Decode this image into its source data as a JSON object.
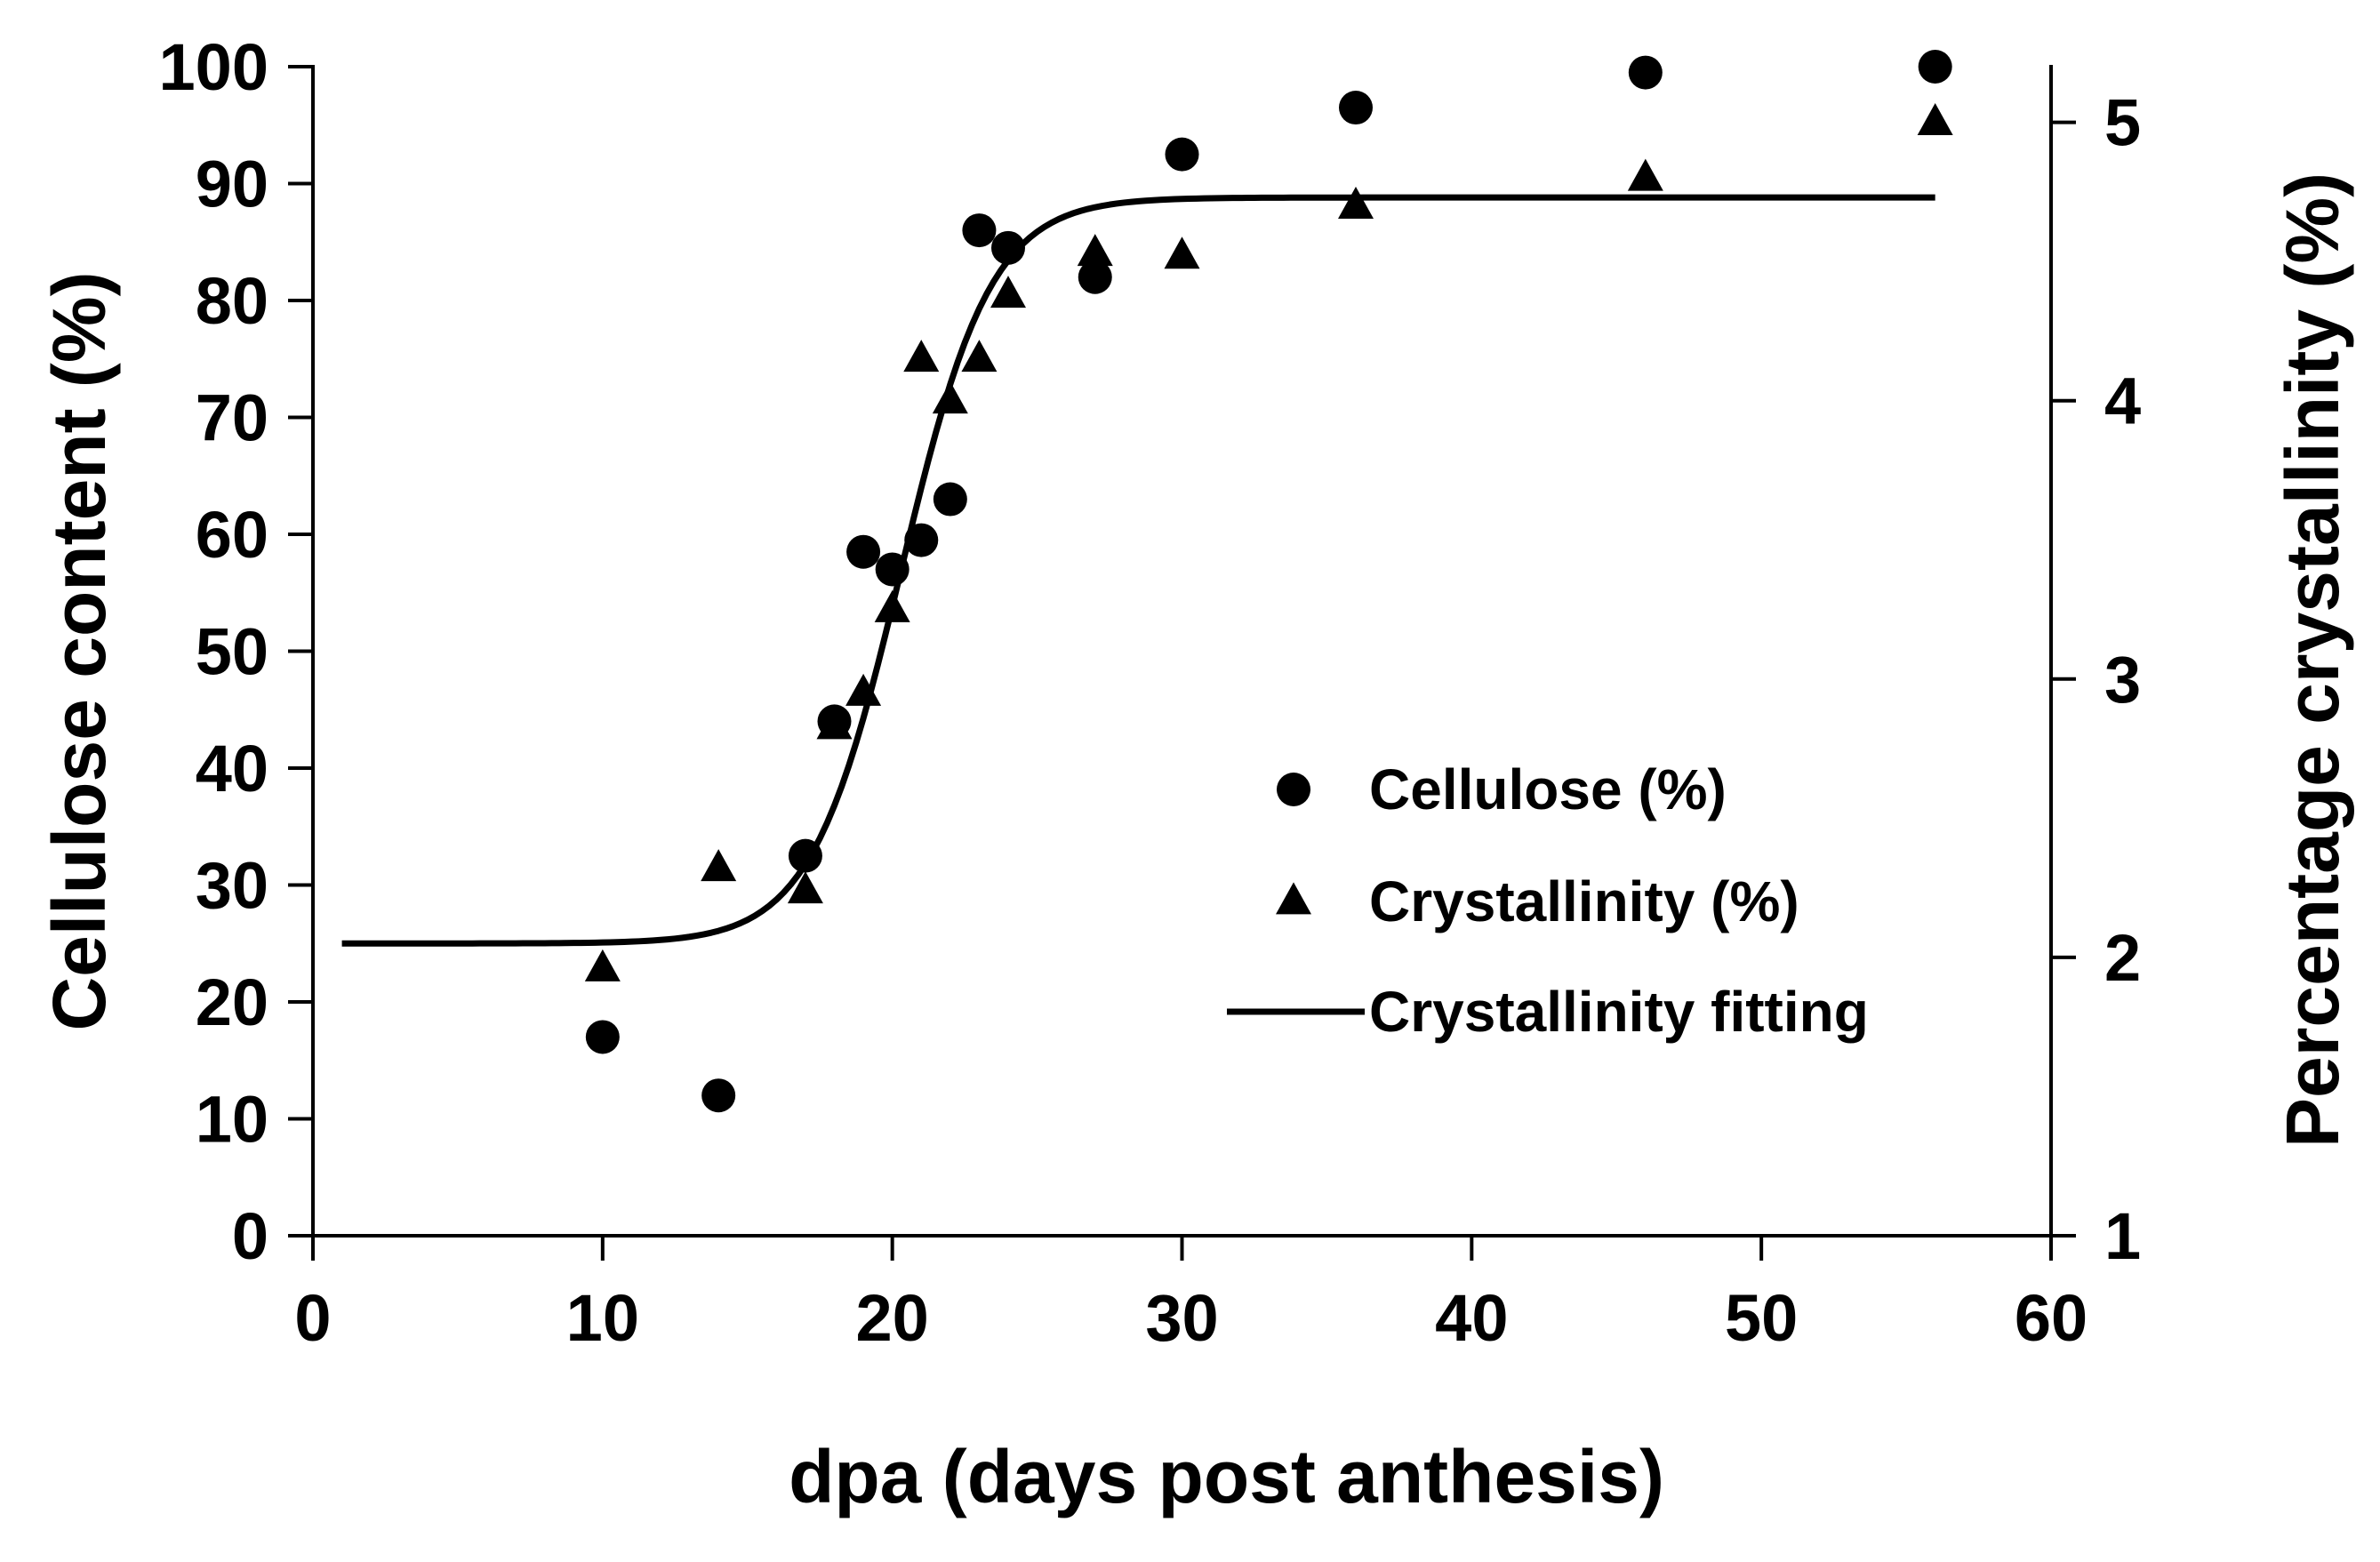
{
  "chart_data": {
    "type": "scatter",
    "title": "",
    "xlabel": "dpa (days post anthesis)",
    "ylabel": "Cellulose content (%)",
    "y2label": "Percentage crystallinity (%)",
    "xlim": [
      0,
      60
    ],
    "ylim": [
      0,
      100
    ],
    "y2lim": [
      1,
      5.2
    ],
    "x_ticks": [
      "0",
      "10",
      "20",
      "30",
      "40",
      "50",
      "60"
    ],
    "y_ticks": [
      "0",
      "10",
      "20",
      "30",
      "40",
      "50",
      "60",
      "70",
      "80",
      "90",
      "100"
    ],
    "y2_ticks": [
      "1",
      "2",
      "3",
      "4",
      "5"
    ],
    "grid": false,
    "legend_position": "center-right",
    "series": [
      {
        "name": "Cellulose (%)",
        "axis": "left",
        "marker": "circle",
        "x": [
          10,
          14,
          17,
          18,
          19,
          20,
          21,
          22,
          23,
          24,
          27,
          30,
          36,
          46,
          56
        ],
        "y": [
          17,
          12,
          32.5,
          44,
          58.5,
          57,
          59.5,
          63,
          86,
          84.5,
          82,
          92.5,
          96.5,
          99.5,
          100
        ]
      },
      {
        "name": "Crystallinity (%)",
        "axis": "right",
        "marker": "triangle",
        "x": [
          10,
          14,
          17,
          18,
          19,
          20,
          21,
          22,
          23,
          24,
          27,
          30,
          36,
          46,
          56
        ],
        "y": [
          1.96,
          2.32,
          2.24,
          2.83,
          2.95,
          3.25,
          4.15,
          4.0,
          4.15,
          4.38,
          4.53,
          4.52,
          4.7,
          4.8,
          5.0
        ]
      },
      {
        "name": "Crystallinity fitting",
        "axis": "right",
        "type": "line",
        "model": "sigmoid",
        "bottom": 2.05,
        "top": 4.73,
        "midpoint": 20.3,
        "slope": 1.55,
        "x_range": [
          1,
          56
        ]
      }
    ]
  }
}
